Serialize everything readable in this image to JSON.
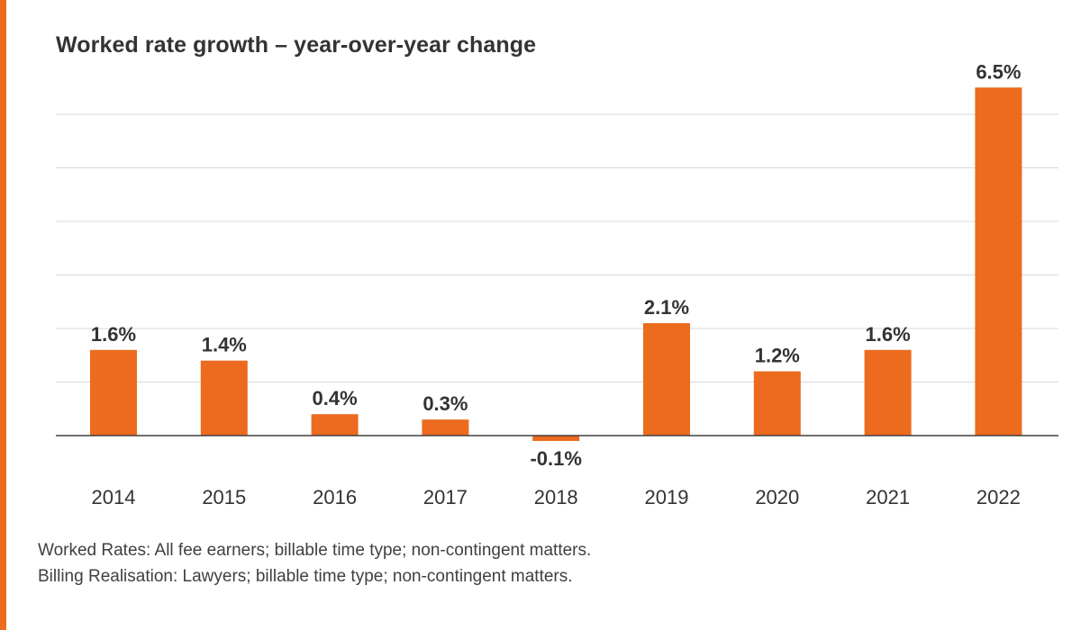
{
  "colors": {
    "accent": "#ec6b1e",
    "bar": "#ec6b1e",
    "gridline": "#d9d9d9",
    "axis": "#404040",
    "text": "#333333"
  },
  "chart_data": {
    "type": "bar",
    "title": "Worked rate growth – year-over-year change",
    "categories": [
      "2014",
      "2015",
      "2016",
      "2017",
      "2018",
      "2019",
      "2020",
      "2021",
      "2022"
    ],
    "values": [
      1.6,
      1.4,
      0.4,
      0.3,
      -0.1,
      2.1,
      1.2,
      1.6,
      6.5
    ],
    "value_labels": [
      "1.6%",
      "1.4%",
      "0.4%",
      "0.3%",
      "-0.1%",
      "2.1%",
      "1.2%",
      "1.6%",
      "6.5%"
    ],
    "xlabel": "",
    "ylabel": "",
    "ylim": [
      0,
      6
    ],
    "grid": true,
    "legend": "none"
  },
  "notes": {
    "line1": "Worked Rates: All fee earners; billable time type; non-contingent matters.",
    "line2": "Billing Realisation: Lawyers; billable time type; non-contingent matters."
  }
}
